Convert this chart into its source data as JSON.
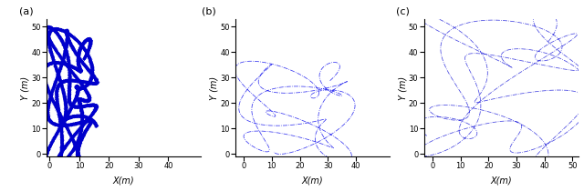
{
  "fig_width": 6.4,
  "fig_height": 2.1,
  "dpi": 100,
  "line_color_a": "#0000CC",
  "line_color_b": "#2222EE",
  "line_color_c": "#3333DD",
  "panel_labels": [
    "(a)",
    "(b)",
    "(c)"
  ],
  "xlabel": "X(m)",
  "ylabel": "Y (m)",
  "xlim_a": [
    -1,
    51
  ],
  "ylim_a": [
    -1,
    53
  ],
  "xlim_b": [
    -3,
    52
  ],
  "ylim_b": [
    -1,
    53
  ],
  "xlim_c": [
    -3,
    52
  ],
  "ylim_c": [
    -1,
    53
  ],
  "xticks_a": [
    0,
    10,
    20,
    30,
    40
  ],
  "yticks_a": [
    0,
    10,
    20,
    30,
    40,
    50
  ],
  "xticks_b": [
    0,
    10,
    20,
    30,
    40
  ],
  "yticks_b": [
    0,
    10,
    20,
    30,
    40,
    50
  ],
  "xticks_c": [
    0,
    10,
    20,
    30,
    40,
    50
  ],
  "yticks_c": [
    0,
    10,
    20,
    30,
    40,
    50
  ],
  "seed_a": 42,
  "seed_b": 7,
  "seed_c": 15,
  "n_loops_b": 120,
  "n_loops_c": 50
}
